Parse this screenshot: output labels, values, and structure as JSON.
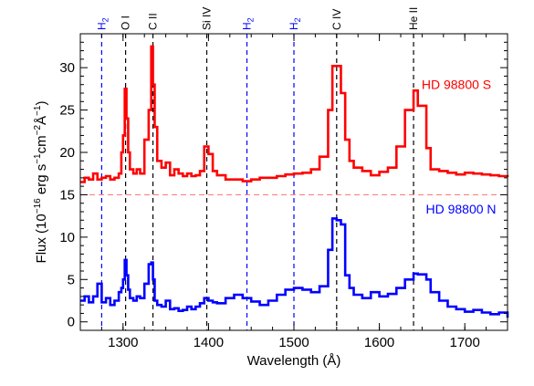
{
  "chart_data": {
    "type": "line",
    "xlabel": "Wavelength (Å)",
    "ylabel_parts": {
      "base": "Flux (10",
      "exp1": "−16",
      "mid": " erg s",
      "exp2": "−1",
      "mid2": "cm",
      "exp3": "−2",
      "mid3": "Å",
      "exp4": "−1",
      "end": ")"
    },
    "xlim": [
      1250,
      1750
    ],
    "ylim": [
      -1,
      34
    ],
    "xticks": [
      1300,
      1400,
      1500,
      1600,
      1700
    ],
    "yticks": [
      0,
      5,
      10,
      15,
      20,
      25,
      30
    ],
    "reference_line": {
      "y": 15,
      "color": "#ff8080",
      "style": "dashed"
    },
    "spectral_lines": [
      {
        "label": "H",
        "subscript": "2",
        "wavelength": 1275,
        "color": "#0000ff"
      },
      {
        "label": "O I",
        "subscript": "",
        "wavelength": 1303,
        "color": "#000000"
      },
      {
        "label": "C II",
        "subscript": "",
        "wavelength": 1335,
        "color": "#000000"
      },
      {
        "label": "Si IV",
        "subscript": "",
        "wavelength": 1398,
        "color": "#000000"
      },
      {
        "label": "H",
        "subscript": "2",
        "wavelength": 1445,
        "color": "#0000ff"
      },
      {
        "label": "H",
        "subscript": "2",
        "wavelength": 1500,
        "color": "#0000ff"
      },
      {
        "label": "C IV",
        "subscript": "",
        "wavelength": 1550,
        "color": "#000000"
      },
      {
        "label": "He II",
        "subscript": "",
        "wavelength": 1640,
        "color": "#000000"
      }
    ],
    "series": [
      {
        "name": "HD 98800 S",
        "color": "#ff0000",
        "x": [
          1250,
          1255,
          1260,
          1265,
          1270,
          1275,
          1280,
          1285,
          1290,
          1295,
          1298,
          1300,
          1302,
          1304,
          1306,
          1308,
          1312,
          1316,
          1320,
          1325,
          1330,
          1333,
          1335,
          1337,
          1340,
          1345,
          1350,
          1355,
          1360,
          1365,
          1370,
          1375,
          1380,
          1385,
          1390,
          1395,
          1400,
          1405,
          1410,
          1420,
          1430,
          1440,
          1450,
          1460,
          1470,
          1480,
          1490,
          1500,
          1510,
          1520,
          1530,
          1540,
          1545,
          1550,
          1555,
          1560,
          1565,
          1570,
          1580,
          1590,
          1600,
          1610,
          1620,
          1630,
          1640,
          1645,
          1655,
          1660,
          1670,
          1680,
          1690,
          1700,
          1710,
          1720,
          1730,
          1740,
          1750
        ],
        "y": [
          16.5,
          17,
          16.8,
          17.5,
          16.8,
          17,
          17.2,
          16.8,
          17,
          17.5,
          20,
          22,
          27.5,
          24,
          20,
          18,
          17.5,
          18,
          17.5,
          21.5,
          25,
          32.5,
          28,
          23,
          19,
          18.2,
          18.8,
          17.3,
          18,
          17.5,
          17.2,
          17.5,
          17.2,
          17.3,
          17.8,
          20.7,
          19.8,
          17.8,
          17.3,
          16.8,
          16.8,
          16.6,
          16.8,
          17,
          17,
          17.2,
          17.4,
          17.5,
          17.6,
          18,
          19.5,
          25,
          30.2,
          30.2,
          27,
          21.5,
          19,
          18.2,
          17.8,
          17.3,
          17.7,
          18.2,
          20.7,
          25,
          27.3,
          25.5,
          20.5,
          18,
          17.8,
          17.6,
          17.4,
          17.6,
          17.5,
          17.4,
          17.3,
          17.2,
          17.1
        ]
      },
      {
        "name": "HD 98800 N",
        "color": "#0000ff",
        "x": [
          1250,
          1255,
          1260,
          1265,
          1270,
          1275,
          1280,
          1285,
          1290,
          1295,
          1298,
          1300,
          1302,
          1304,
          1306,
          1308,
          1312,
          1316,
          1320,
          1325,
          1330,
          1333,
          1335,
          1337,
          1340,
          1345,
          1350,
          1355,
          1360,
          1365,
          1370,
          1375,
          1380,
          1385,
          1390,
          1395,
          1400,
          1405,
          1410,
          1420,
          1430,
          1440,
          1450,
          1460,
          1470,
          1480,
          1490,
          1500,
          1510,
          1520,
          1530,
          1540,
          1545,
          1550,
          1555,
          1560,
          1565,
          1570,
          1580,
          1590,
          1600,
          1610,
          1620,
          1630,
          1640,
          1645,
          1655,
          1660,
          1670,
          1680,
          1690,
          1700,
          1710,
          1720,
          1730,
          1740,
          1750
        ],
        "y": [
          2.5,
          3,
          2.3,
          3,
          4.5,
          2.3,
          2.8,
          2,
          2.5,
          3.5,
          4,
          5,
          7.3,
          5.5,
          3.8,
          2.8,
          2.5,
          3,
          2.8,
          4.5,
          6.8,
          7,
          5,
          2.5,
          2,
          1.8,
          2.5,
          1.5,
          1.6,
          1.3,
          1.4,
          1.8,
          1.5,
          1.8,
          2.2,
          2.8,
          2.5,
          2.3,
          2.2,
          2.8,
          3.2,
          2.8,
          2.4,
          2,
          2.5,
          3.2,
          3.8,
          4,
          3.8,
          3.5,
          4.2,
          8.5,
          12.2,
          12,
          11.5,
          5.5,
          4,
          3.2,
          2.8,
          3.5,
          3,
          3.3,
          4,
          5,
          5.7,
          5.6,
          5,
          3.5,
          2.5,
          1.8,
          1.5,
          1.2,
          1.4,
          1.1,
          0.9,
          1.1,
          0.5
        ]
      }
    ]
  }
}
